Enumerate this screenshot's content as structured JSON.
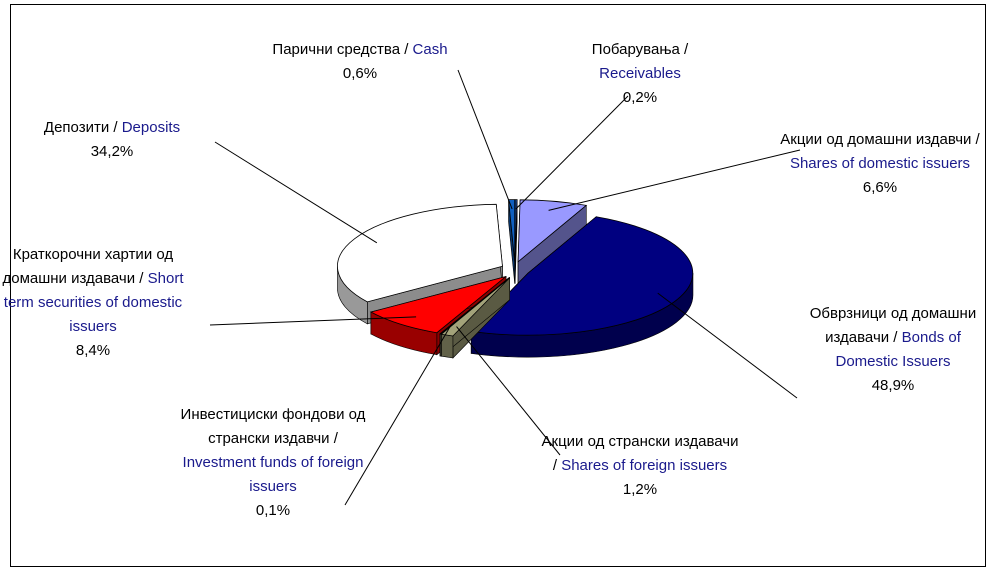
{
  "chart_data": {
    "type": "pie",
    "categories": [
      {
        "local": "Побарувања /",
        "english": "Receivables"
      },
      {
        "local": "Акции од домашни издавчи /",
        "english": "Shares of domestic issuers"
      },
      {
        "local": "Обврзници од домашни издавачи /",
        "english": "Bonds of Domestic Issuers"
      },
      {
        "local": "Акции од странски издавачи /",
        "english": "Shares of foreign issuers"
      },
      {
        "local": "Инвестициски фондови од странски издавчи /",
        "english": "Investment funds of foreign issuers"
      },
      {
        "local": "Краткорочни хартии од домашни издавачи /",
        "english": "Short term securities of domestic issuers"
      },
      {
        "local": "Депозити /",
        "english": "Deposits"
      },
      {
        "local": "Парични средства /",
        "english": "Cash"
      }
    ],
    "values": [
      0.2,
      6.6,
      48.9,
      1.2,
      0.1,
      8.4,
      34.2,
      0.6
    ],
    "value_labels": [
      "0,2%",
      "6,6%",
      "48,9%",
      "1,2%",
      "0,1%",
      "8,4%",
      "34,2%",
      "0,6%"
    ],
    "colors": [
      "#1f4f9f",
      "#9999ff",
      "#000080",
      "#a3a37a",
      "#c8c8a0",
      "#ff0000",
      "#ffffff",
      "#1060c0"
    ]
  }
}
